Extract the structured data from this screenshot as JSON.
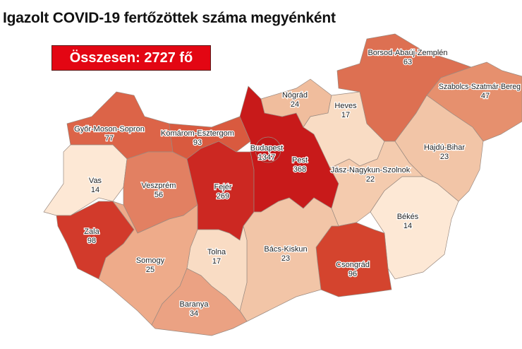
{
  "title": "Igazolt COVID-19 fertőzöttek száma megyénként",
  "total_label": "Összesen: 2727 fő",
  "counties": [
    {
      "name": "Győr-Moson-Sopron",
      "value": "77",
      "color": "#dc6448"
    },
    {
      "name": "Vas",
      "value": "14",
      "color": "#fde8d5"
    },
    {
      "name": "Zala",
      "value": "98",
      "color": "#d23a2b"
    },
    {
      "name": "Veszprém",
      "value": "56",
      "color": "#e28062"
    },
    {
      "name": "Komárom-Esztergom",
      "value": "93",
      "color": "#d95a3f"
    },
    {
      "name": "Fejér",
      "value": "269",
      "color": "#cc2822"
    },
    {
      "name": "Pest",
      "value": "368",
      "color": "#c81a1a"
    },
    {
      "name": "Budapest",
      "value": "1347",
      "color": "#c21616"
    },
    {
      "name": "Nógrád",
      "value": "24",
      "color": "#f0bd9d"
    },
    {
      "name": "Heves",
      "value": "17",
      "color": "#f9dcc4"
    },
    {
      "name": "Borsod-Abaúj-Zemplén",
      "value": "63",
      "color": "#dd7052"
    },
    {
      "name": "Szabolcs-Szatmár-Bereg",
      "value": "47",
      "color": "#e6906e"
    },
    {
      "name": "Hajdú-Bihar",
      "value": "23",
      "color": "#f2c5a7"
    },
    {
      "name": "Jász-Nagykun-Szolnok",
      "value": "22",
      "color": "#f4cbae"
    },
    {
      "name": "Békés",
      "value": "14",
      "color": "#fde8d5"
    },
    {
      "name": "Csongrád",
      "value": "96",
      "color": "#d4442e"
    },
    {
      "name": "Bács-Kiskun",
      "value": "23",
      "color": "#f2c5a7"
    },
    {
      "name": "Tolna",
      "value": "17",
      "color": "#f9dcc4"
    },
    {
      "name": "Somogy",
      "value": "25",
      "color": "#eeab8a"
    },
    {
      "name": "Baranya",
      "value": "34",
      "color": "#eba283"
    }
  ]
}
